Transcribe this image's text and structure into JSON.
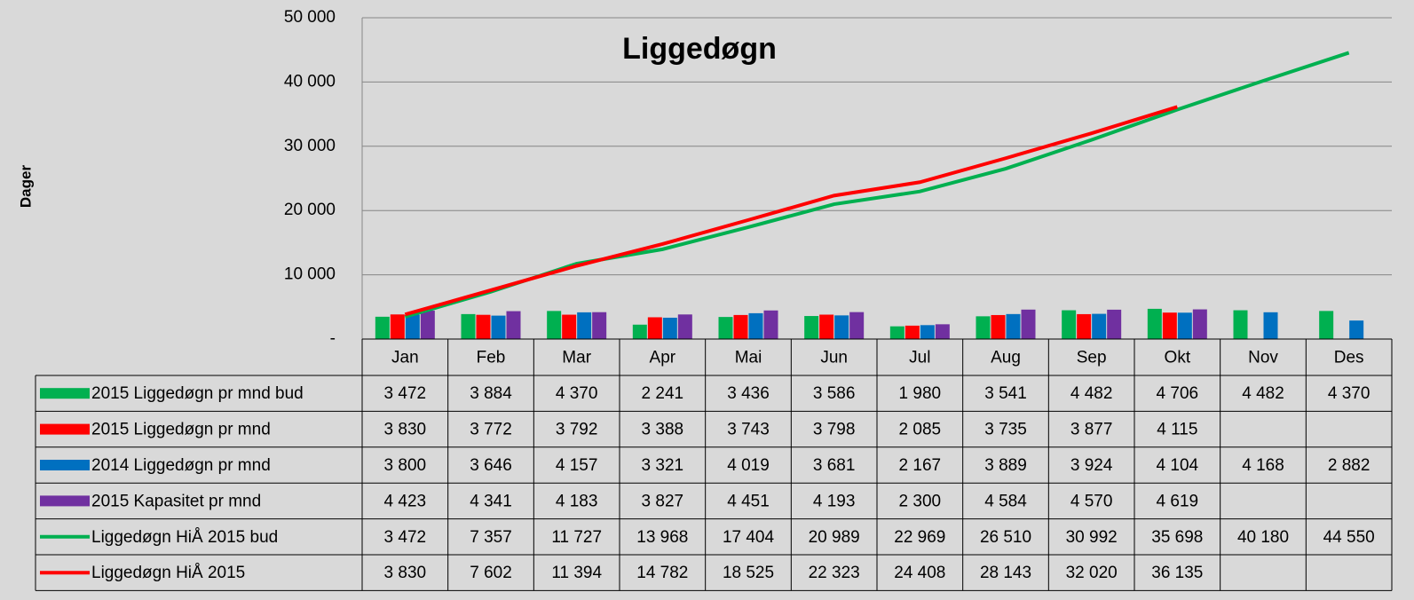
{
  "chart_data": {
    "type": "bar",
    "title": "Liggedøgn",
    "y_label": "Dager",
    "categories": [
      "Jan",
      "Feb",
      "Mar",
      "Apr",
      "Mai",
      "Jun",
      "Jul",
      "Aug",
      "Sep",
      "Okt",
      "Nov",
      "Des"
    ],
    "ylim": [
      0,
      50000
    ],
    "yticks": [
      {
        "value": 0,
        "label": "-"
      },
      {
        "value": 10000,
        "label": "10 000"
      },
      {
        "value": 20000,
        "label": "20 000"
      },
      {
        "value": 30000,
        "label": "30 000"
      },
      {
        "value": 40000,
        "label": "40 000"
      },
      {
        "value": 50000,
        "label": "50 000"
      }
    ],
    "grid": true,
    "series": [
      {
        "name": "2015 Liggedøgn pr mnd bud",
        "type": "bar",
        "color": "#00b050",
        "values": [
          3472,
          3884,
          4370,
          2241,
          3436,
          3586,
          1980,
          3541,
          4482,
          4706,
          4482,
          4370
        ],
        "value_labels": [
          "3 472",
          "3 884",
          "4 370",
          "2 241",
          "3 436",
          "3 586",
          "1 980",
          "3 541",
          "4 482",
          "4 706",
          "4 482",
          "4 370"
        ]
      },
      {
        "name": "2015 Liggedøgn pr mnd",
        "type": "bar",
        "color": "#ff0000",
        "values": [
          3830,
          3772,
          3792,
          3388,
          3743,
          3798,
          2085,
          3735,
          3877,
          4115,
          null,
          null
        ],
        "value_labels": [
          "3 830",
          "3 772",
          "3 792",
          "3 388",
          "3 743",
          "3 798",
          "2 085",
          "3 735",
          "3 877",
          "4 115",
          null,
          null
        ]
      },
      {
        "name": "2014 Liggedøgn pr mnd",
        "type": "bar",
        "color": "#0070c0",
        "values": [
          3800,
          3646,
          4157,
          3321,
          4019,
          3681,
          2167,
          3889,
          3924,
          4104,
          4168,
          2882
        ],
        "value_labels": [
          "3 800",
          "3 646",
          "4 157",
          "3 321",
          "4 019",
          "3 681",
          "2 167",
          "3 889",
          "3 924",
          "4 104",
          "4 168",
          "2 882"
        ]
      },
      {
        "name": "2015 Kapasitet pr mnd",
        "type": "bar",
        "color": "#7030a0",
        "values": [
          4423,
          4341,
          4183,
          3827,
          4451,
          4193,
          2300,
          4584,
          4570,
          4619,
          null,
          null
        ],
        "value_labels": [
          "4 423",
          "4 341",
          "4 183",
          "3 827",
          "4 451",
          "4 193",
          "2 300",
          "4 584",
          "4 570",
          "4 619",
          null,
          null
        ]
      },
      {
        "name": "Liggedøgn HiÅ 2015 bud",
        "type": "line",
        "color": "#00b050",
        "values": [
          3472,
          7357,
          11727,
          13968,
          17404,
          20989,
          22969,
          26510,
          30992,
          35698,
          40180,
          44550
        ],
        "value_labels": [
          "3 472",
          "7 357",
          "11 727",
          "13 968",
          "17 404",
          "20 989",
          "22 969",
          "26 510",
          "30 992",
          "35 698",
          "40 180",
          "44 550"
        ]
      },
      {
        "name": "Liggedøgn HiÅ 2015",
        "type": "line",
        "color": "#ff0000",
        "values": [
          3830,
          7602,
          11394,
          14782,
          18525,
          22323,
          24408,
          28143,
          32020,
          36135,
          null,
          null
        ],
        "value_labels": [
          "3 830",
          "7 602",
          "11 394",
          "14 782",
          "18 525",
          "22 323",
          "24 408",
          "28 143",
          "32 020",
          "36 135",
          null,
          null
        ]
      }
    ]
  }
}
